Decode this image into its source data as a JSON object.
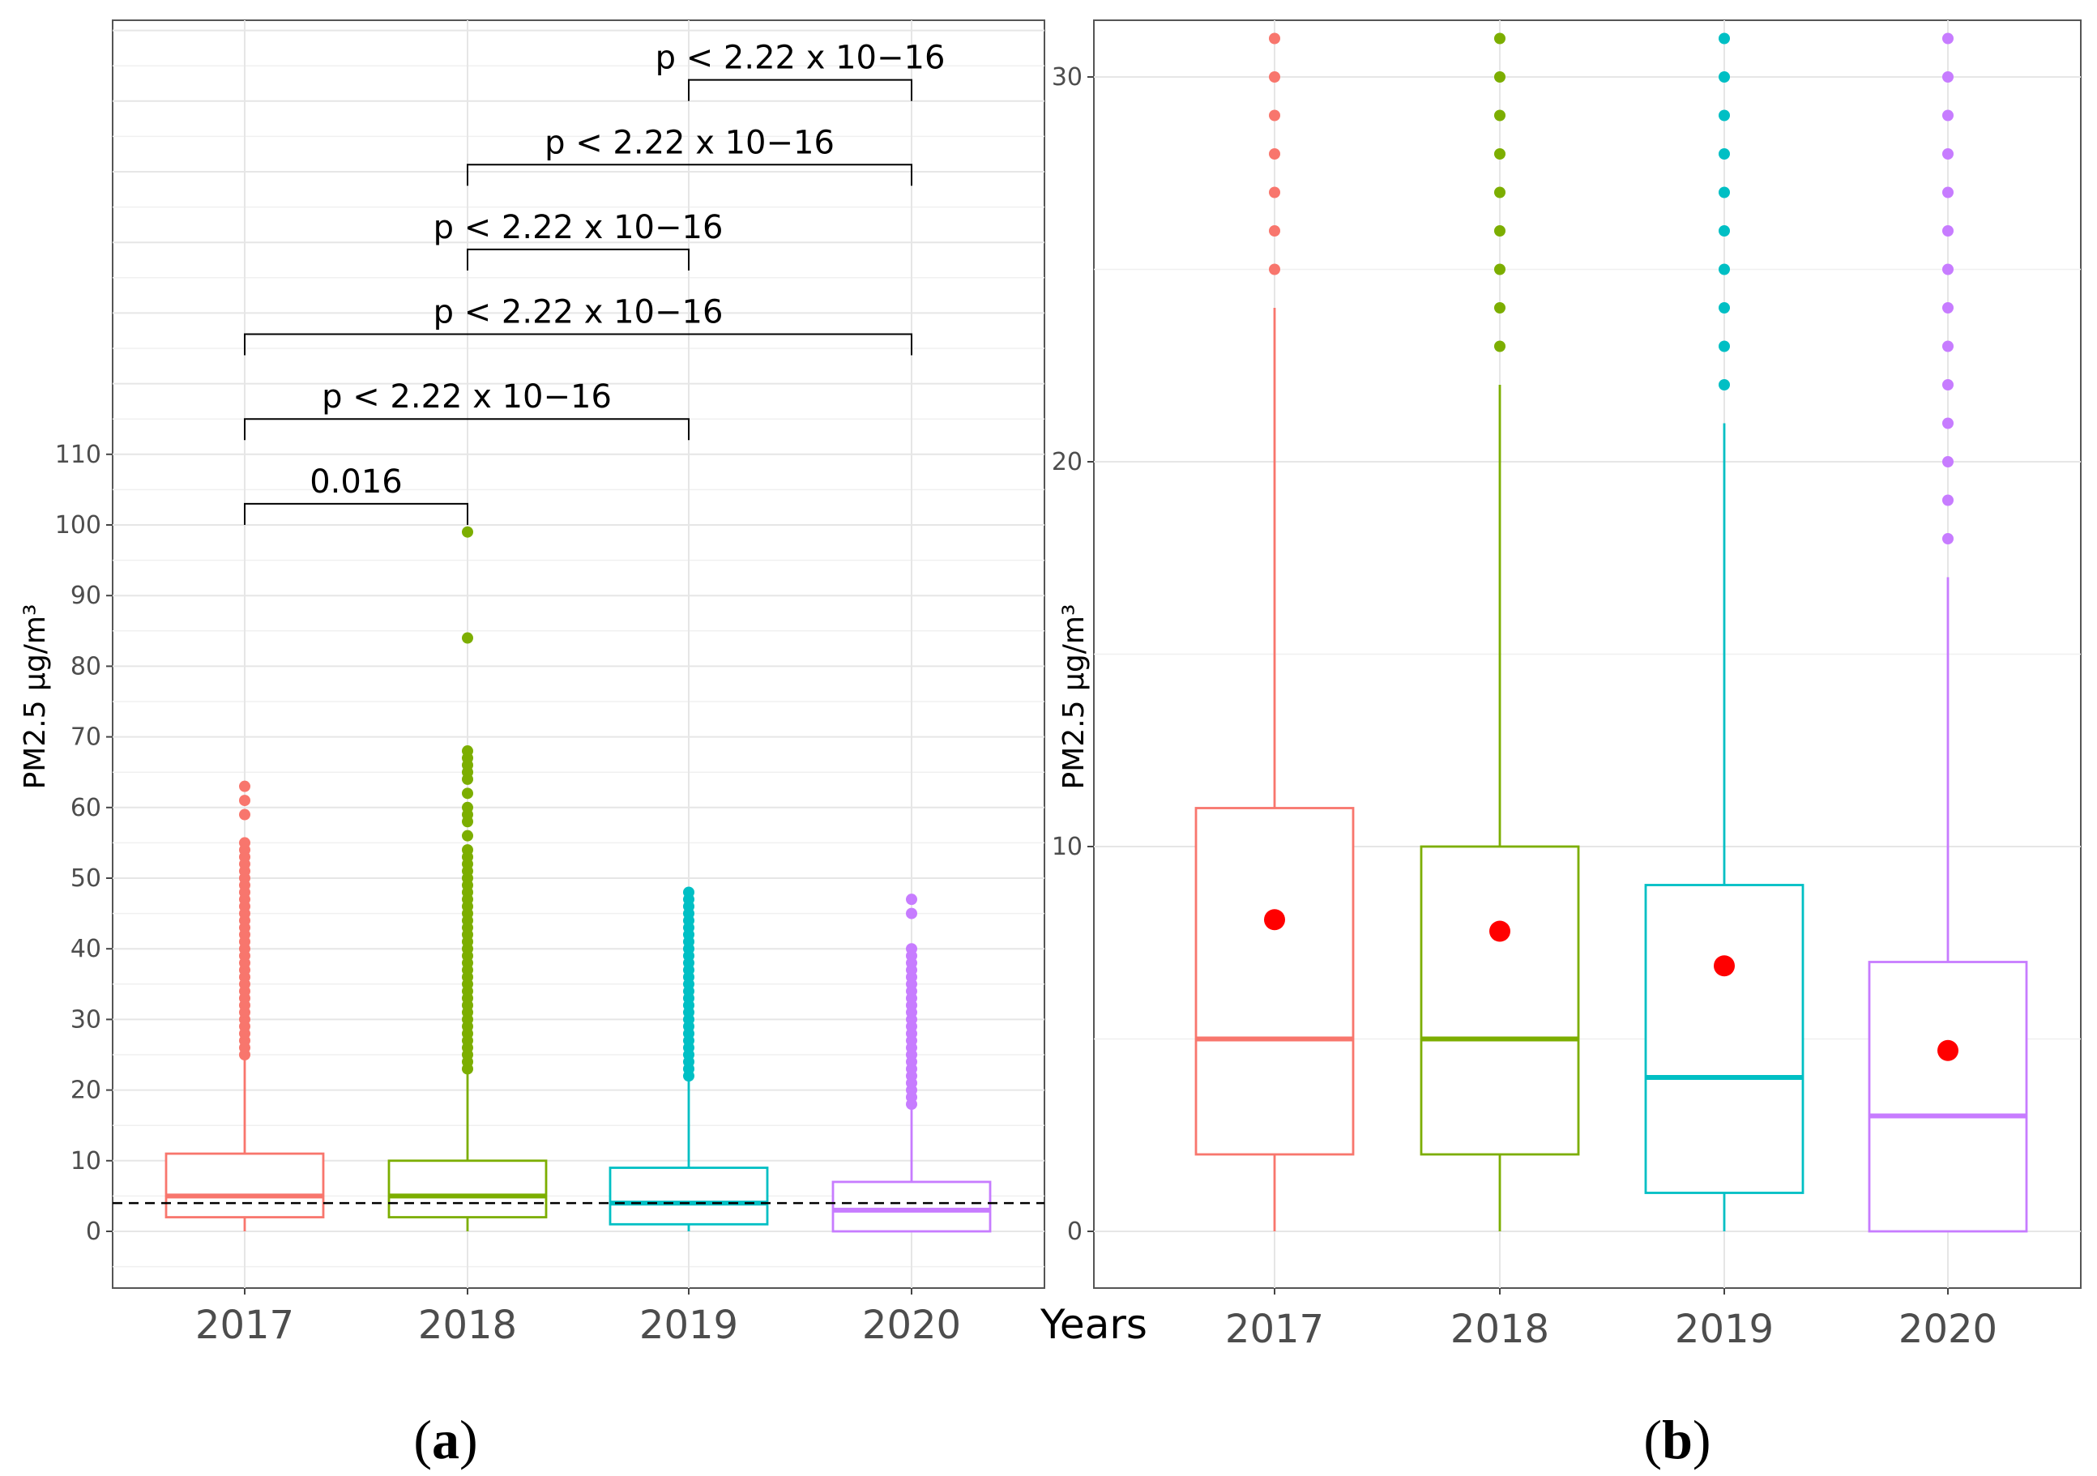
{
  "chart_data": [
    {
      "panel": "a",
      "type": "boxplot",
      "ylabel": "PM2.5 µg/m³",
      "xlabel": "Years",
      "ylim": [
        -8,
        172
      ],
      "y_ticks": [
        "0",
        "10",
        "20",
        "30",
        "40",
        "50",
        "60",
        "70",
        "80",
        "90",
        "100",
        "110"
      ],
      "y_tick_values": [
        0,
        10,
        20,
        30,
        40,
        50,
        60,
        70,
        80,
        90,
        100,
        110
      ],
      "categories": [
        "2017",
        "2018",
        "2019",
        "2020"
      ],
      "reference_line": 4,
      "boxes": [
        {
          "year": "2017",
          "color": "#F8766D",
          "q1": 2,
          "median": 5,
          "q3": 11,
          "whisker_low": 0,
          "whisker_high": 25,
          "outliers": [
            25,
            26,
            27,
            28,
            29,
            30,
            31,
            32,
            33,
            34,
            35,
            36,
            37,
            38,
            39,
            40,
            41,
            42,
            43,
            44,
            45,
            46,
            47,
            48,
            49,
            50,
            51,
            52,
            53,
            54,
            55,
            59,
            61,
            63
          ]
        },
        {
          "year": "2018",
          "color": "#7CAE00",
          "q1": 2,
          "median": 5,
          "q3": 10,
          "whisker_low": 0,
          "whisker_high": 23,
          "outliers": [
            23,
            24,
            25,
            26,
            27,
            28,
            29,
            30,
            31,
            32,
            33,
            34,
            35,
            36,
            37,
            38,
            39,
            40,
            41,
            42,
            43,
            44,
            45,
            46,
            47,
            48,
            49,
            50,
            51,
            52,
            53,
            54,
            56,
            58,
            59,
            60,
            62,
            64,
            65,
            66,
            67,
            68,
            84,
            99
          ]
        },
        {
          "year": "2019",
          "color": "#00BFC4",
          "q1": 1,
          "median": 4,
          "q3": 9,
          "whisker_low": 0,
          "whisker_high": 22,
          "outliers": [
            22,
            23,
            24,
            25,
            26,
            27,
            28,
            29,
            30,
            31,
            32,
            33,
            34,
            35,
            36,
            37,
            38,
            39,
            40,
            41,
            42,
            43,
            44,
            45,
            46,
            47,
            48
          ]
        },
        {
          "year": "2020",
          "color": "#C77CFF",
          "q1": 0,
          "median": 3,
          "q3": 7,
          "whisker_low": 0,
          "whisker_high": 18,
          "outliers": [
            18,
            19,
            20,
            21,
            22,
            23,
            24,
            25,
            26,
            27,
            28,
            29,
            30,
            31,
            32,
            33,
            34,
            35,
            36,
            37,
            38,
            39,
            40,
            45,
            47
          ]
        }
      ],
      "comparisons": [
        {
          "from": "2017",
          "to": "2018",
          "y": 103,
          "label": "0.016"
        },
        {
          "from": "2017",
          "to": "2019",
          "y": 115,
          "label": "p < 2.22 x 10−16"
        },
        {
          "from": "2017",
          "to": "2020",
          "y": 127,
          "label": "p < 2.22 x 10−16"
        },
        {
          "from": "2018",
          "to": "2019",
          "y": 139,
          "label": "p < 2.22 x 10−16"
        },
        {
          "from": "2018",
          "to": "2020",
          "y": 151,
          "label": "p < 2.22 x 10−16"
        },
        {
          "from": "2019",
          "to": "2020",
          "y": 163,
          "label": "p < 2.22 x 10−16"
        }
      ],
      "panel_label": "a"
    },
    {
      "panel": "b",
      "type": "boxplot",
      "ylabel": "PM2.5 µg/m³",
      "ylim": [
        -0.8,
        31.5
      ],
      "y_ticks": [
        "0",
        "10",
        "20",
        "30"
      ],
      "y_tick_values": [
        0,
        10,
        20,
        30
      ],
      "categories": [
        "2017",
        "2018",
        "2019",
        "2020"
      ],
      "mean_color": "#FF0000",
      "boxes": [
        {
          "year": "2017",
          "color": "#F8766D",
          "q1": 2,
          "median": 5,
          "q3": 11,
          "whisker_low": 0,
          "whisker_high": 24,
          "mean": 8.1,
          "outliers": [
            25,
            26,
            27,
            28,
            29,
            30,
            31
          ]
        },
        {
          "year": "2018",
          "color": "#7CAE00",
          "q1": 2,
          "median": 5,
          "q3": 10,
          "whisker_low": 0,
          "whisker_high": 22,
          "mean": 7.8,
          "outliers": [
            23,
            24,
            25,
            26,
            27,
            28,
            29,
            30,
            31
          ]
        },
        {
          "year": "2019",
          "color": "#00BFC4",
          "q1": 1,
          "median": 4,
          "q3": 9,
          "whisker_low": 0,
          "whisker_high": 21,
          "mean": 6.9,
          "outliers": [
            22,
            23,
            24,
            25,
            26,
            27,
            28,
            29,
            30,
            31
          ]
        },
        {
          "year": "2020",
          "color": "#C77CFF",
          "q1": 0,
          "median": 3,
          "q3": 7,
          "whisker_low": 0,
          "whisker_high": 17,
          "mean": 4.7,
          "outliers": [
            18,
            19,
            20,
            21,
            22,
            23,
            24,
            25,
            26,
            27,
            28,
            29,
            30,
            31
          ]
        }
      ],
      "panel_label": "b"
    }
  ]
}
